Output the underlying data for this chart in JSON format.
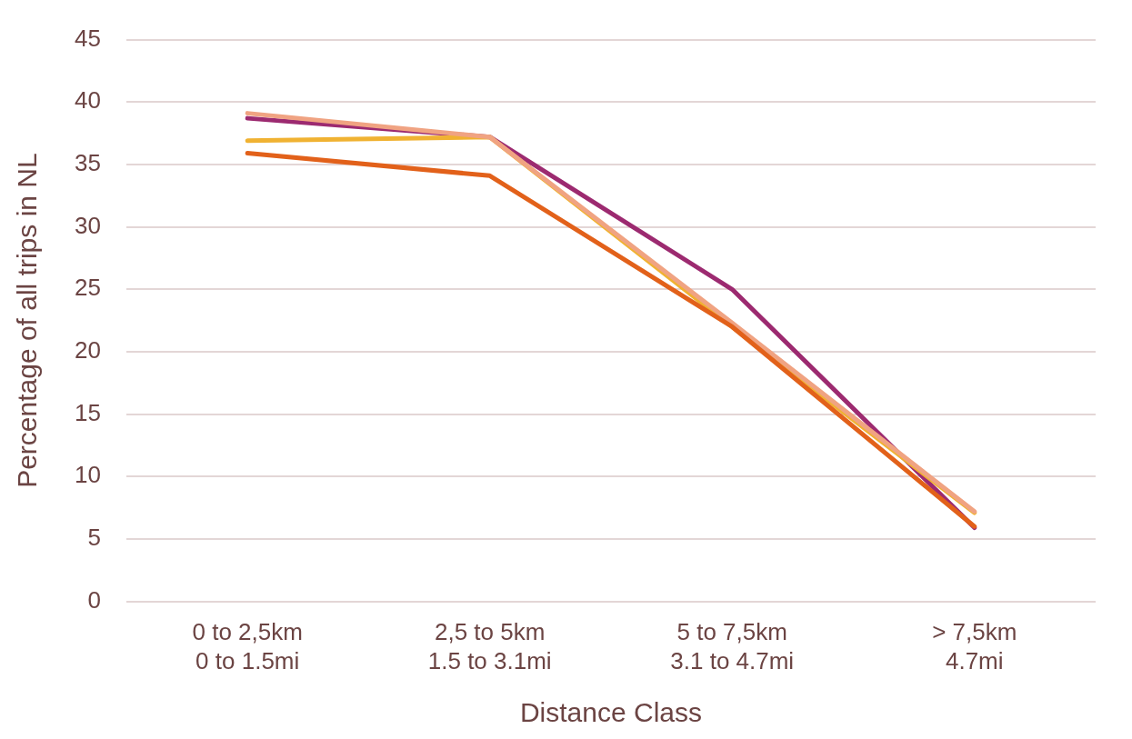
{
  "chart_data": {
    "type": "line",
    "xlabel": "Distance Class",
    "ylabel": "Percentage of all trips in NL",
    "categories": [
      "0 to 2,5km\n0 to 1.5mi",
      "2,5 to 5km\n1.5 to 3.1mi",
      "5 to 7,5km\n3.1 to 4.7mi",
      "> 7,5km\n4.7mi"
    ],
    "series": [
      {
        "color": "#e2611a",
        "values": [
          35.9,
          34.1,
          22.0,
          6.0
        ]
      },
      {
        "color": "#f0a382",
        "values": [
          39.1,
          37.2,
          22.3,
          7.2
        ]
      },
      {
        "color": "#f0b232",
        "values": [
          36.9,
          37.2,
          22.0,
          7.1
        ]
      },
      {
        "color": "#9c2a70",
        "values": [
          38.7,
          37.2,
          25.0,
          5.9
        ]
      }
    ],
    "ylim": [
      0,
      45
    ],
    "yticks": [
      0,
      5,
      10,
      15,
      20,
      25,
      30,
      35,
      40,
      45
    ],
    "grid": "y",
    "legend": false,
    "marker": "none",
    "line_style": "solid"
  }
}
